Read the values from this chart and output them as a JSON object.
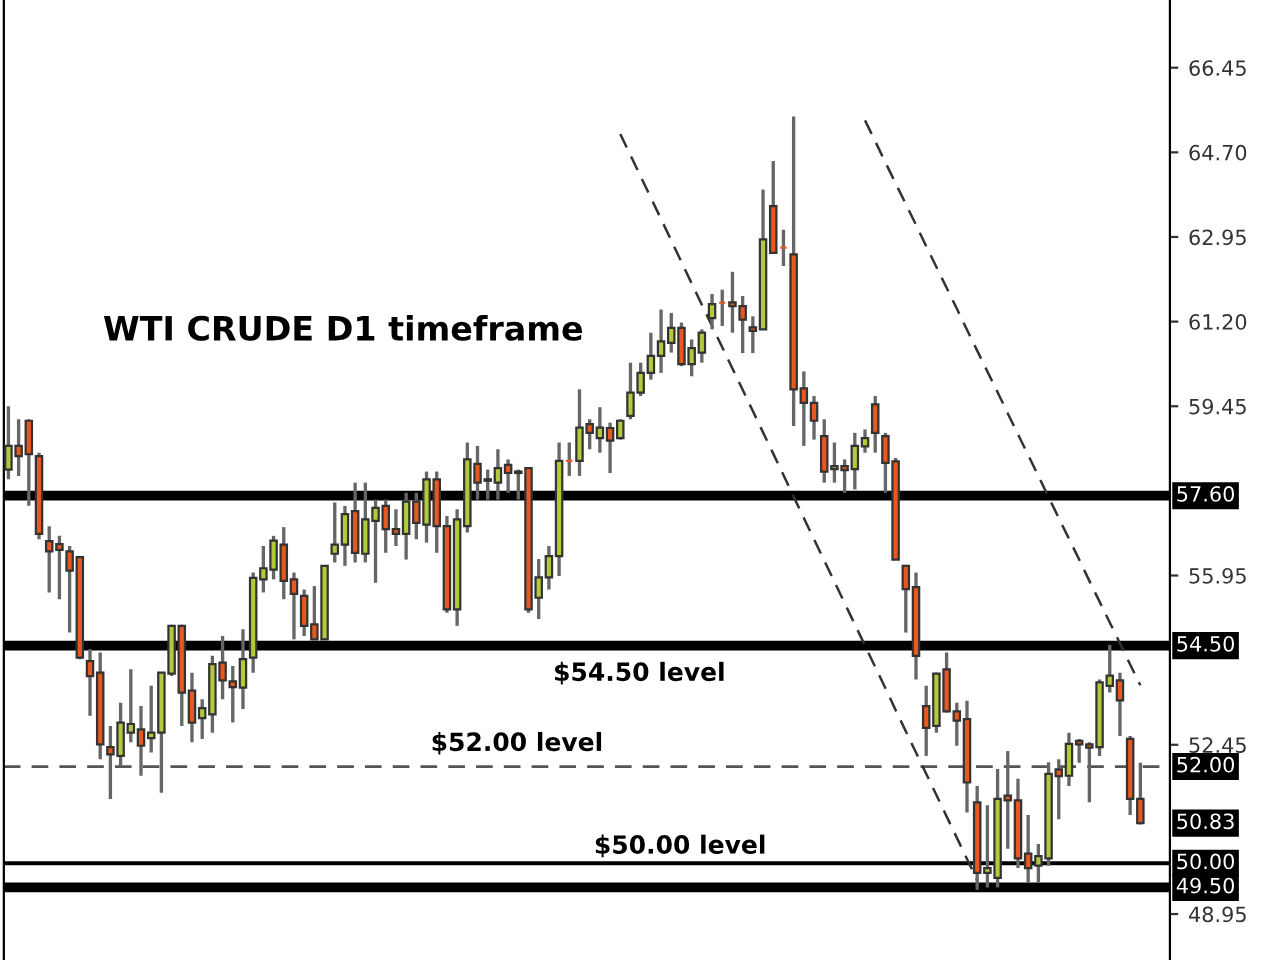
{
  "chart_data": {
    "type": "candlestick",
    "title": "WTI CRUDE D1 timeframe",
    "categories": [
      null,
      null,
      null,
      null,
      null,
      null,
      null,
      null,
      null,
      null,
      null,
      null,
      null,
      null,
      null,
      null,
      null,
      null,
      null,
      null,
      null,
      null,
      null,
      null,
      null,
      null,
      null,
      null,
      null,
      null,
      null,
      null,
      null,
      null,
      null,
      null,
      null,
      null,
      null,
      null,
      null,
      null,
      null,
      null,
      null,
      null,
      null,
      null,
      null,
      null,
      null,
      null,
      null,
      null,
      null,
      null,
      null,
      null,
      null,
      null,
      null,
      null,
      null,
      null,
      null,
      null,
      null,
      null,
      null,
      null,
      null,
      null,
      null,
      null,
      null,
      null,
      null,
      null,
      null,
      null,
      null,
      null,
      null,
      null,
      null,
      null,
      null,
      null,
      null,
      null,
      null,
      null,
      null,
      null,
      null,
      null,
      null,
      null,
      null,
      null,
      null,
      null,
      null,
      null,
      null,
      null,
      null,
      null,
      null,
      null,
      null,
      null
    ],
    "ohlc": [
      [
        58.14,
        59.45,
        57.94,
        58.63
      ],
      [
        58.63,
        59.18,
        58.01,
        58.42
      ],
      [
        59.15,
        59.18,
        57.39,
        58.46
      ],
      [
        58.42,
        58.49,
        56.7,
        56.81
      ],
      [
        56.66,
        56.97,
        55.6,
        56.45
      ],
      [
        56.6,
        56.77,
        55.46,
        56.48
      ],
      [
        56.45,
        56.56,
        54.77,
        56.05
      ],
      [
        56.33,
        56.35,
        54.22,
        54.25
      ],
      [
        54.18,
        54.43,
        53.05,
        53.87
      ],
      [
        53.94,
        54.36,
        52.15,
        52.46
      ],
      [
        52.4,
        52.84,
        51.33,
        52.25
      ],
      [
        52.22,
        53.32,
        52.01,
        52.91
      ],
      [
        52.7,
        54.01,
        52.5,
        52.88
      ],
      [
        52.77,
        53.25,
        51.81,
        52.43
      ],
      [
        52.59,
        53.67,
        52.29,
        52.7
      ],
      [
        52.7,
        53.94,
        51.46,
        53.94
      ],
      [
        53.92,
        54.93,
        53.87,
        54.91
      ],
      [
        54.91,
        54.93,
        52.84,
        53.53
      ],
      [
        53.57,
        53.94,
        52.5,
        52.91
      ],
      [
        53.0,
        53.39,
        52.57,
        53.21
      ],
      [
        53.08,
        54.29,
        52.7,
        54.12
      ],
      [
        54.15,
        54.7,
        53.39,
        53.78
      ],
      [
        53.76,
        54.08,
        52.91,
        53.64
      ],
      [
        53.63,
        54.84,
        53.19,
        54.22
      ],
      [
        54.25,
        56.01,
        53.94,
        55.9
      ],
      [
        55.87,
        56.56,
        55.6,
        56.1
      ],
      [
        56.07,
        56.77,
        55.87,
        56.67
      ],
      [
        56.59,
        56.95,
        55.46,
        55.84
      ],
      [
        55.87,
        56.01,
        54.63,
        55.57
      ],
      [
        55.53,
        55.66,
        54.7,
        54.91
      ],
      [
        54.94,
        55.73,
        54.63,
        54.63
      ],
      [
        54.63,
        56.15,
        54.63,
        56.15
      ],
      [
        56.4,
        57.46,
        56.22,
        56.59
      ],
      [
        56.59,
        57.39,
        56.15,
        57.22
      ],
      [
        57.28,
        57.87,
        56.22,
        56.42
      ],
      [
        56.4,
        57.87,
        56.22,
        57.11
      ],
      [
        57.08,
        57.52,
        55.8,
        57.35
      ],
      [
        57.39,
        57.52,
        56.42,
        56.91
      ],
      [
        56.91,
        57.32,
        56.56,
        56.81
      ],
      [
        56.81,
        57.66,
        56.28,
        57.48
      ],
      [
        57.48,
        57.66,
        56.7,
        57.04
      ],
      [
        57.0,
        58.1,
        56.63,
        57.94
      ],
      [
        57.94,
        58.1,
        56.42,
        56.97
      ],
      [
        56.97,
        57.18,
        55.18,
        55.25
      ],
      [
        55.25,
        57.32,
        54.91,
        57.11
      ],
      [
        56.97,
        58.7,
        56.84,
        58.35
      ],
      [
        58.26,
        58.63,
        57.52,
        57.87
      ],
      [
        57.94,
        58.14,
        57.52,
        57.91
      ],
      [
        57.87,
        58.56,
        57.52,
        58.17
      ],
      [
        58.24,
        58.35,
        57.66,
        58.07
      ],
      [
        58.1,
        58.14,
        57.52,
        58.07
      ],
      [
        58.17,
        58.19,
        55.18,
        55.25
      ],
      [
        55.49,
        56.29,
        55.05,
        55.91
      ],
      [
        55.91,
        56.56,
        55.66,
        56.35
      ],
      [
        56.35,
        58.7,
        55.94,
        58.32
      ],
      [
        58.32,
        58.7,
        58.01,
        58.32
      ],
      [
        58.32,
        59.8,
        58.01,
        59.01
      ],
      [
        59.08,
        59.18,
        58.56,
        58.9
      ],
      [
        58.79,
        59.43,
        58.49,
        59.01
      ],
      [
        59.0,
        59.11,
        58.07,
        58.74
      ],
      [
        58.79,
        59.18,
        58.76,
        59.15
      ],
      [
        59.25,
        60.35,
        59.18,
        59.73
      ],
      [
        59.73,
        60.35,
        59.66,
        60.14
      ],
      [
        60.14,
        60.97,
        60.0,
        60.49
      ],
      [
        60.49,
        61.45,
        60.14,
        60.79
      ],
      [
        60.76,
        61.38,
        60.56,
        61.07
      ],
      [
        61.07,
        61.18,
        60.28,
        60.32
      ],
      [
        60.32,
        60.83,
        60.07,
        60.65
      ],
      [
        60.56,
        61.04,
        60.35,
        60.97
      ],
      [
        61.27,
        61.77,
        61.04,
        61.56
      ],
      [
        61.59,
        61.86,
        61.11,
        61.59
      ],
      [
        61.6,
        62.23,
        60.97,
        61.52
      ],
      [
        61.52,
        61.73,
        60.55,
        61.24
      ],
      [
        61.08,
        61.31,
        60.55,
        61.01
      ],
      [
        61.04,
        63.93,
        61.04,
        62.9
      ],
      [
        63.59,
        64.52,
        62.62,
        62.62
      ],
      [
        62.73,
        63.1,
        62.35,
        62.73
      ],
      [
        62.59,
        65.44,
        59.04,
        59.8
      ],
      [
        59.82,
        60.17,
        58.63,
        59.52
      ],
      [
        59.52,
        59.66,
        58.76,
        59.15
      ],
      [
        58.83,
        59.18,
        57.87,
        58.1
      ],
      [
        58.15,
        58.7,
        57.87,
        58.21
      ],
      [
        58.21,
        58.35,
        57.66,
        58.13
      ],
      [
        58.15,
        58.9,
        57.73,
        58.63
      ],
      [
        58.62,
        58.97,
        58.49,
        58.79
      ],
      [
        59.49,
        59.66,
        58.49,
        58.9
      ],
      [
        58.83,
        58.9,
        57.66,
        58.28
      ],
      [
        58.31,
        58.38,
        56.28,
        56.28
      ],
      [
        56.15,
        56.17,
        54.77,
        55.67
      ],
      [
        55.71,
        56.01,
        53.8,
        54.29
      ],
      [
        53.25,
        53.67,
        52.22,
        52.8
      ],
      [
        52.84,
        53.94,
        52.7,
        53.92
      ],
      [
        54.01,
        54.36,
        53.12,
        53.14
      ],
      [
        53.14,
        53.32,
        52.43,
        52.95
      ],
      [
        52.98,
        53.36,
        51.05,
        51.67
      ],
      [
        51.26,
        51.6,
        49.45,
        49.8
      ],
      [
        49.8,
        51.2,
        49.5,
        49.9
      ],
      [
        49.7,
        51.95,
        49.5,
        51.33
      ],
      [
        51.4,
        52.32,
        50.3,
        51.3
      ],
      [
        51.3,
        51.75,
        49.9,
        50.1
      ],
      [
        50.2,
        51.0,
        49.6,
        49.9
      ],
      [
        49.95,
        50.4,
        49.6,
        50.15
      ],
      [
        50.1,
        52.09,
        49.95,
        51.85
      ],
      [
        51.94,
        52.15,
        50.91,
        51.8
      ],
      [
        51.81,
        52.7,
        51.6,
        52.47
      ],
      [
        52.53,
        52.57,
        52.08,
        52.46
      ],
      [
        52.46,
        52.5,
        51.26,
        52.39
      ],
      [
        52.4,
        53.8,
        52.22,
        53.74
      ],
      [
        53.67,
        54.52,
        53.53,
        53.88
      ],
      [
        53.78,
        53.94,
        52.63,
        53.37
      ],
      [
        52.57,
        52.63,
        51.0,
        51.33
      ],
      [
        51.33,
        52.08,
        50.8,
        50.83
      ]
    ],
    "colors": [
      "#b2cb3b",
      "#e8581f",
      "#e8581f",
      "#e8581f",
      "#e8581f",
      "#e8581f",
      "#e8581f",
      "#e8581f",
      "#e8581f",
      "#e8581f",
      "#e8581f",
      "#b2cb3b",
      "#b2cb3b",
      "#e8581f",
      "#b2cb3b",
      "#b2cb3b",
      "#b2cb3b",
      "#e8581f",
      "#e8581f",
      "#b2cb3b",
      "#b2cb3b",
      "#e8581f",
      "#e8581f",
      "#b2cb3b",
      "#b2cb3b",
      "#b2cb3b",
      "#b2cb3b",
      "#e8581f",
      "#e8581f",
      "#e8581f",
      "#e8581f",
      "#b2cb3b",
      "#b2cb3b",
      "#b2cb3b",
      "#e8581f",
      "#b2cb3b",
      "#b2cb3b",
      "#e8581f",
      "#e8581f",
      "#b2cb3b",
      "#e8581f",
      "#b2cb3b",
      "#e8581f",
      "#e8581f",
      "#b2cb3b",
      "#b2cb3b",
      "#e8581f",
      "#e8581f",
      "#b2cb3b",
      "#e8581f",
      "#e8581f",
      "#e8581f",
      "#b2cb3b",
      "#b2cb3b",
      "#b2cb3b",
      "#e8581f",
      "#b2cb3b",
      "#e8581f",
      "#b2cb3b",
      "#e8581f",
      "#b2cb3b",
      "#b2cb3b",
      "#b2cb3b",
      "#b2cb3b",
      "#b2cb3b",
      "#b2cb3b",
      "#e8581f",
      "#b2cb3b",
      "#b2cb3b",
      "#b2cb3b",
      "#e8581f",
      "#e8581f",
      "#e8581f",
      "#e8581f",
      "#b2cb3b",
      "#e8581f",
      "#e8581f",
      "#e8581f",
      "#e8581f",
      "#e8581f",
      "#e8581f",
      "#b2cb3b",
      "#e8581f",
      "#b2cb3b",
      "#b2cb3b",
      "#e8581f",
      "#e8581f",
      "#e8581f",
      "#e8581f",
      "#e8581f",
      "#e8581f",
      "#b2cb3b",
      "#e8581f",
      "#e8581f",
      "#e8581f",
      "#e8581f",
      "#b2cb3b",
      "#b2cb3b",
      "#e8581f",
      "#e8581f",
      "#e8581f",
      "#b2cb3b",
      "#b2cb3b",
      "#e8581f",
      "#b2cb3b",
      "#e8581f",
      "#e8581f",
      "#b2cb3b",
      "#b2cb3b",
      "#e8581f",
      "#e8581f",
      "#e8581f"
    ],
    "series": [
      {
        "type": "line",
        "values": [
          null,
          null,
          null,
          null,
          null,
          null,
          null,
          null,
          null,
          null,
          null,
          null,
          null,
          null,
          null,
          null,
          null,
          null,
          null,
          null,
          null,
          null,
          null,
          null,
          null,
          null,
          null,
          null,
          null,
          null,
          null,
          null,
          null,
          null,
          null,
          null,
          null,
          null,
          null,
          null,
          null,
          null,
          null,
          null,
          null,
          null,
          null,
          null,
          null,
          null,
          null,
          null,
          null,
          null,
          null,
          null,
          null,
          null,
          null,
          null,
          65.08,
          64.64,
          64.2,
          63.76,
          63.32,
          62.88,
          62.43,
          61.99,
          61.55,
          61.11,
          60.67,
          60.23,
          59.79,
          59.35,
          58.91,
          58.47,
          58.03,
          57.58,
          57.14,
          56.7,
          56.26,
          55.82,
          55.38,
          54.94,
          54.5,
          54.06,
          53.62,
          53.17,
          52.73,
          52.29,
          51.85,
          51.41,
          50.97,
          50.53,
          50.09,
          49.65,
          null,
          null,
          null,
          null,
          null,
          null,
          null,
          null,
          null,
          null,
          null,
          null,
          null,
          null,
          null,
          null
        ],
        "color": "#333333",
        "line_style": "dashed"
      },
      {
        "type": "line",
        "values": [
          null,
          null,
          null,
          null,
          null,
          null,
          null,
          null,
          null,
          null,
          null,
          null,
          null,
          null,
          null,
          null,
          null,
          null,
          null,
          null,
          null,
          null,
          null,
          null,
          null,
          null,
          null,
          null,
          null,
          null,
          null,
          null,
          null,
          null,
          null,
          null,
          null,
          null,
          null,
          null,
          null,
          null,
          null,
          null,
          null,
          null,
          null,
          null,
          null,
          null,
          null,
          null,
          null,
          null,
          null,
          null,
          null,
          null,
          null,
          null,
          null,
          null,
          null,
          null,
          null,
          null,
          null,
          null,
          null,
          null,
          null,
          null,
          null,
          null,
          null,
          null,
          null,
          null,
          null,
          null,
          null,
          null,
          null,
          null,
          65.36,
          64.93,
          64.49,
          64.06,
          63.63,
          63.2,
          62.76,
          62.33,
          61.9,
          61.47,
          61.03,
          60.6,
          60.17,
          59.74,
          59.3,
          58.87,
          58.44,
          58.01,
          57.57,
          57.14,
          56.71,
          56.28,
          55.84,
          55.41,
          54.98,
          54.55,
          54.11,
          53.68
        ],
        "color": "#333333",
        "line_style": "dashed"
      }
    ],
    "ylim": [
      48.0,
      67.85
    ],
    "yticks": [
      48.95,
      52.45,
      55.95,
      59.45,
      {
        "value": 61.2,
        "label": "61.20"
      },
      62.95,
      {
        "value": 64.7,
        "label": "64.70"
      },
      66.45
    ],
    "tick_labels": "y",
    "ref_lines": [
      {
        "axis": "y",
        "value": 57.6,
        "label": "57.60",
        "color": "#000000",
        "line_style": "solid"
      },
      {
        "axis": "y",
        "value": 54.5,
        "label": "54.50",
        "color": "#000000",
        "line_style": "solid"
      },
      {
        "axis": "y",
        "value": 52.0,
        "label": "52.00",
        "color": "#555555",
        "line_style": "dashed"
      },
      {
        "axis": "y",
        "value": 50.0,
        "label": "50.00",
        "color": "#000000",
        "line_style": "solid"
      },
      {
        "axis": "y",
        "value": 49.5,
        "label": "49.50",
        "color": "#000000",
        "line_style": "solid"
      }
    ],
    "annotations": [
      "$54.50 level",
      "$52.00 level",
      "$50.00 level",
      "50.83"
    ]
  }
}
